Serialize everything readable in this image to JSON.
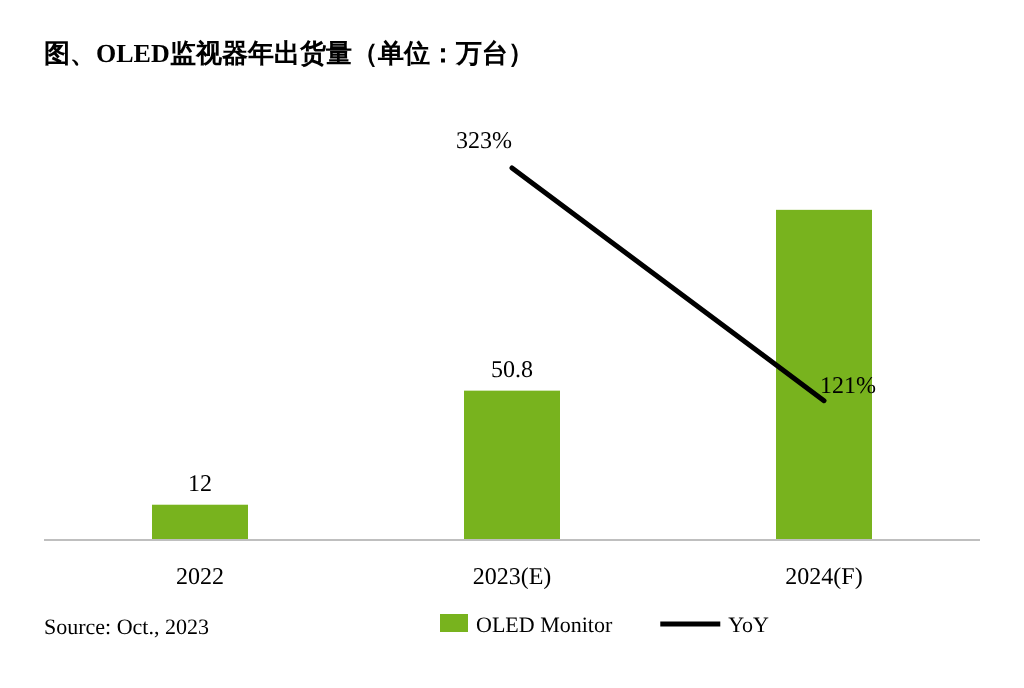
{
  "chart_data": {
    "type": "bar",
    "title": "图、OLED监视器年出货量（单位：万台）",
    "categories": [
      "2022",
      "2023(E)",
      "2024(F)"
    ],
    "series": [
      {
        "name": "OLED Monitor",
        "color": "#78b31e",
        "values": [
          12,
          50.8,
          112.3
        ],
        "value_labels": [
          "12",
          "50.8",
          null
        ]
      },
      {
        "name": "YoY",
        "type": "line",
        "axis": "y2",
        "color": "#000000",
        "values": [
          null,
          323,
          121
        ],
        "value_labels": [
          null,
          "323%",
          "121%"
        ]
      }
    ],
    "legend": "bottom",
    "annotations": [
      "Source: Oct., 2023"
    ]
  }
}
